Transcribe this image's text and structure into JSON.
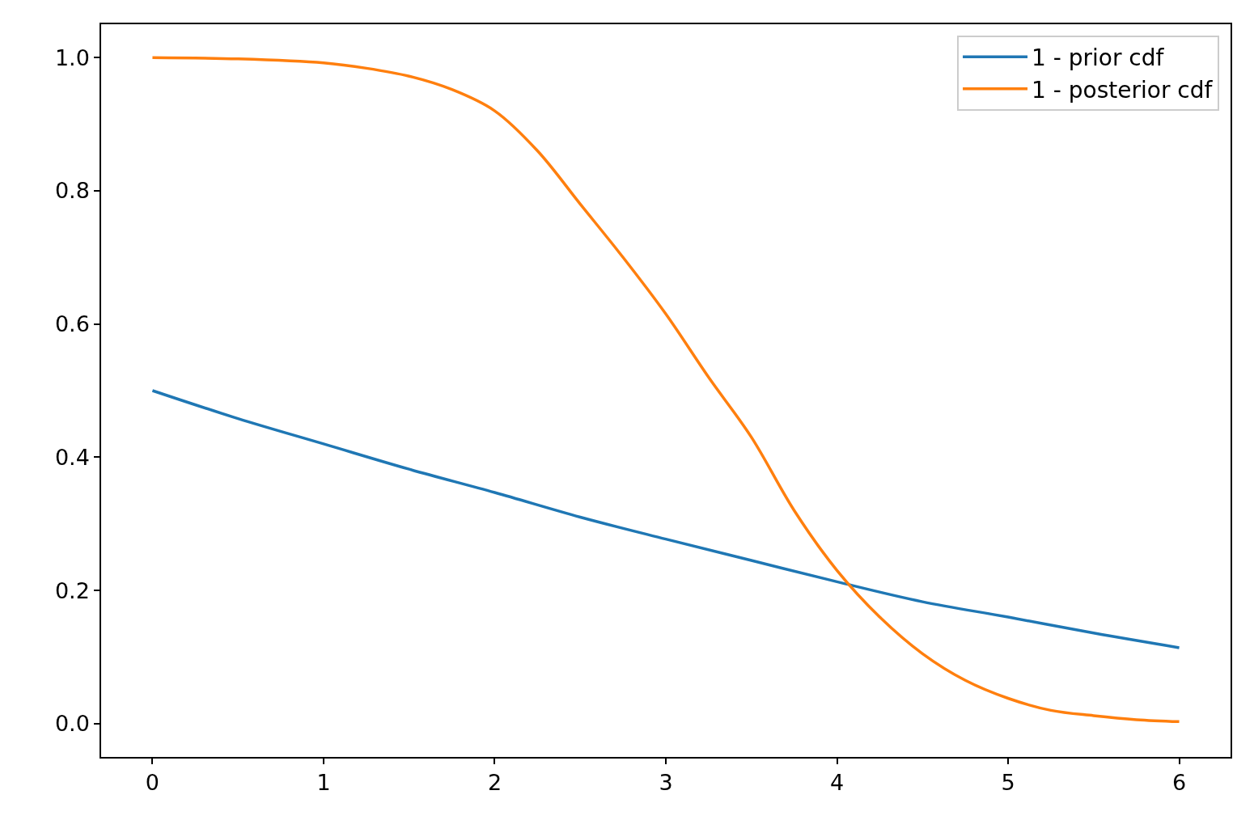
{
  "chart_data": {
    "type": "line",
    "xlim": [
      -0.3,
      6.3
    ],
    "ylim": [
      -0.05,
      1.05
    ],
    "xticks": [
      0,
      1,
      2,
      3,
      4,
      5,
      6
    ],
    "yticks": [
      {
        "value": 0,
        "label": "0.0"
      },
      {
        "value": 0.2,
        "label": "0.2"
      },
      {
        "value": 0.4,
        "label": "0.4"
      },
      {
        "value": 0.6,
        "label": "0.6"
      },
      {
        "value": 0.8,
        "label": "0.8"
      },
      {
        "value": 1.0,
        "label": "1.0"
      }
    ],
    "legend": "top right",
    "marker": "none",
    "line_style": "solid",
    "series": [
      {
        "name": "1 - prior cdf",
        "color": "#1f77b4",
        "x": [
          0,
          0.5,
          1,
          1.5,
          2,
          2.5,
          3,
          3.5,
          4,
          4.5,
          5,
          5.5,
          6
        ],
        "values": [
          0.5,
          0.458,
          0.42,
          0.382,
          0.347,
          0.31,
          0.277,
          0.245,
          0.213,
          0.183,
          0.16,
          0.136,
          0.114
        ]
      },
      {
        "name": "1 - posterior cdf",
        "color": "#ff7f0e",
        "x": [
          0,
          0.5,
          1,
          1.25,
          1.5,
          1.75,
          2,
          2.25,
          2.5,
          2.75,
          3,
          3.25,
          3.5,
          3.75,
          4,
          4.25,
          4.5,
          4.75,
          5,
          5.25,
          5.5,
          5.75,
          6
        ],
        "values": [
          1.0,
          0.998,
          0.992,
          0.984,
          0.972,
          0.952,
          0.92,
          0.86,
          0.78,
          0.7,
          0.615,
          0.52,
          0.43,
          0.32,
          0.23,
          0.16,
          0.105,
          0.065,
          0.038,
          0.02,
          0.012,
          0.006,
          0.003
        ]
      }
    ]
  }
}
